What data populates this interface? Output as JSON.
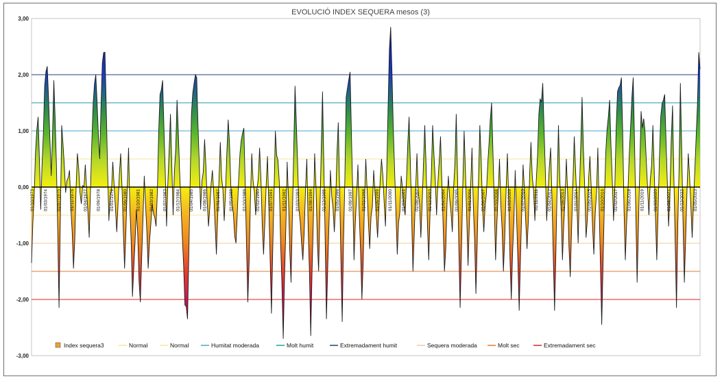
{
  "chart_data": {
    "type": "area",
    "title": "EVOLUCIÓ INDEX SEQUERA mesos (3)",
    "xlabel": "",
    "ylabel": "",
    "ylim": [
      -3,
      3
    ],
    "yticks": [
      "3,00",
      "2,00",
      "1,00",
      "0,00",
      "-1,00",
      "-2,00",
      "-3,00"
    ],
    "grid": false,
    "legend_position": "bottom",
    "legend": [
      {
        "label": "Index sequera3",
        "kind": "area",
        "color": "#f0a030"
      },
      {
        "label": "Normal",
        "kind": "line",
        "color": "#f5e6a0"
      },
      {
        "label": "Normal",
        "kind": "line",
        "color": "#f5e6a0"
      },
      {
        "label": "Humitat moderada",
        "kind": "line",
        "color": "#4aa6d6"
      },
      {
        "label": "Molt humit",
        "kind": "line",
        "color": "#1f9aa8"
      },
      {
        "label": "Extremadament humit",
        "kind": "line",
        "color": "#1f3f7a"
      },
      {
        "label": "Sequera moderada",
        "kind": "line",
        "color": "#f2c89a"
      },
      {
        "label": "Molt sec",
        "kind": "line",
        "color": "#e07a30"
      },
      {
        "label": "Extremadament sec",
        "kind": "line",
        "color": "#e02020"
      }
    ],
    "thresholds": [
      {
        "name": "Normal",
        "value": 0.5,
        "color": "#f5e6a0"
      },
      {
        "name": "Normal",
        "value": -0.5,
        "color": "#f5e6a0"
      },
      {
        "name": "Humitat moderada",
        "value": 1.0,
        "color": "#4aa6d6"
      },
      {
        "name": "Molt humit",
        "value": 1.5,
        "color": "#1f9aa8"
      },
      {
        "name": "Extremadament humit",
        "value": 2.0,
        "color": "#1f3f7a"
      },
      {
        "name": "Sequera moderada",
        "value": -1.0,
        "color": "#f2c89a"
      },
      {
        "name": "Molt sec",
        "value": -1.5,
        "color": "#e07a30"
      },
      {
        "name": "Extremadament sec",
        "value": -2.0,
        "color": "#e02020"
      }
    ],
    "x_tick_labels": [
      "01/10/1973",
      "01/03/1974",
      "01/07/1975",
      "01/11/1976",
      "01/04/1977",
      "01/09/1978",
      "01/01/1979",
      "01/06/1980",
      "01/10/1981",
      "01/03/1982",
      "01/07/1983",
      "01/12/1984",
      "01/04/1985",
      "01/08/1986",
      "01/01/1987",
      "01/05/1988",
      "01/10/1989",
      "01/02/1990",
      "01/07/1991",
      "01/11/1992",
      "01/03/1993",
      "01/08/1994",
      "01/12/1995",
      "01/05/1996",
      "01/09/1997",
      "01/02/1998",
      "01/06/1999",
      "01/11/2000",
      "01/03/2001",
      "01/08/2002",
      "01/12/2003",
      "01/04/2004",
      "01/09/2005",
      "01/01/2006",
      "01/06/2007",
      "01/10/2008",
      "01/03/2009",
      "01/07/2010",
      "01/11/2011",
      "01/04/2012",
      "01/08/2013",
      "01/01/2014",
      "01/05/2015",
      "01/10/2016",
      "01/02/2017",
      "01/06/2018",
      "01/11/2019",
      "01/03/2020",
      "01/08/2021",
      "01/12/2022",
      "01/05/2023"
    ],
    "anchors": [
      [
        0,
        -1.35
      ],
      [
        3,
        0.6
      ],
      [
        5,
        1.25
      ],
      [
        7,
        -0.4
      ],
      [
        10,
        1.8
      ],
      [
        12,
        2.15
      ],
      [
        15,
        0.2
      ],
      [
        17,
        1.9
      ],
      [
        19,
        0.4
      ],
      [
        21,
        -2.15
      ],
      [
        23,
        1.1
      ],
      [
        26,
        -0.1
      ],
      [
        29,
        0.3
      ],
      [
        32,
        -1.45
      ],
      [
        35,
        0.6
      ],
      [
        38,
        -0.3
      ],
      [
        41,
        0.4
      ],
      [
        44,
        -0.9
      ],
      [
        47,
        1.5
      ],
      [
        49,
        2.0
      ],
      [
        52,
        0.5
      ],
      [
        54,
        2.2
      ],
      [
        56,
        2.4
      ],
      [
        59,
        -0.6
      ],
      [
        62,
        0.45
      ],
      [
        65,
        -0.8
      ],
      [
        68,
        0.6
      ],
      [
        71,
        -1.45
      ],
      [
        74,
        0.7
      ],
      [
        77,
        -1.95
      ],
      [
        80,
        -0.4
      ],
      [
        83,
        -2.05
      ],
      [
        86,
        0.2
      ],
      [
        89,
        -1.45
      ],
      [
        92,
        -0.3
      ],
      [
        95,
        -0.7
      ],
      [
        98,
        1.65
      ],
      [
        100,
        1.9
      ],
      [
        103,
        -0.7
      ],
      [
        106,
        1.3
      ],
      [
        108,
        -0.5
      ],
      [
        111,
        1.55
      ],
      [
        114,
        -0.3
      ],
      [
        117,
        -2.1
      ],
      [
        119,
        -2.35
      ],
      [
        122,
        1.3
      ],
      [
        124,
        1.85
      ],
      [
        126,
        1.95
      ],
      [
        129,
        -0.4
      ],
      [
        132,
        0.85
      ],
      [
        135,
        -0.7
      ],
      [
        138,
        0.3
      ],
      [
        141,
        -1.2
      ],
      [
        144,
        0.8
      ],
      [
        147,
        -0.6
      ],
      [
        150,
        1.2
      ],
      [
        153,
        -0.3
      ],
      [
        156,
        -1.0
      ],
      [
        159,
        0.6
      ],
      [
        162,
        1.05
      ],
      [
        165,
        -2.05
      ],
      [
        168,
        0.6
      ],
      [
        171,
        -0.5
      ],
      [
        174,
        0.7
      ],
      [
        177,
        -1.2
      ],
      [
        180,
        0.55
      ],
      [
        183,
        -2.25
      ],
      [
        186,
        1.0
      ],
      [
        189,
        0.1
      ],
      [
        192,
        -2.7
      ],
      [
        195,
        0.45
      ],
      [
        198,
        -1.7
      ],
      [
        201,
        1.8
      ],
      [
        204,
        -0.4
      ],
      [
        207,
        -1.3
      ],
      [
        210,
        0.5
      ],
      [
        213,
        -2.65
      ],
      [
        216,
        0.6
      ],
      [
        219,
        -1.5
      ],
      [
        222,
        1.7
      ],
      [
        225,
        -2.35
      ],
      [
        228,
        0.3
      ],
      [
        231,
        -0.8
      ],
      [
        234,
        1.15
      ],
      [
        237,
        -2.4
      ],
      [
        240,
        1.6
      ],
      [
        243,
        2.05
      ],
      [
        246,
        -1.3
      ],
      [
        249,
        0.4
      ],
      [
        252,
        -2.0
      ],
      [
        255,
        0.5
      ],
      [
        258,
        -1.1
      ],
      [
        261,
        0.3
      ],
      [
        264,
        -0.9
      ],
      [
        267,
        0.5
      ],
      [
        270,
        -0.7
      ],
      [
        273,
        2.45
      ],
      [
        274,
        2.85
      ],
      [
        276,
        1.05
      ],
      [
        279,
        -1.2
      ],
      [
        282,
        0.2
      ],
      [
        285,
        -0.5
      ],
      [
        288,
        1.25
      ],
      [
        291,
        -1.5
      ],
      [
        294,
        0.6
      ],
      [
        297,
        -0.9
      ],
      [
        300,
        1.1
      ],
      [
        303,
        -1.3
      ],
      [
        306,
        1.1
      ],
      [
        309,
        -0.5
      ],
      [
        312,
        0.9
      ],
      [
        315,
        -1.5
      ],
      [
        318,
        0.2
      ],
      [
        321,
        -0.8
      ],
      [
        324,
        1.3
      ],
      [
        327,
        -2.15
      ],
      [
        330,
        1.0
      ],
      [
        333,
        -1.4
      ],
      [
        336,
        0.7
      ],
      [
        339,
        -1.9
      ],
      [
        342,
        1.1
      ],
      [
        345,
        -0.8
      ],
      [
        348,
        0.4
      ],
      [
        351,
        1.5
      ],
      [
        354,
        -1.3
      ],
      [
        357,
        0.5
      ],
      [
        360,
        -1.5
      ],
      [
        363,
        0.6
      ],
      [
        366,
        -2.0
      ],
      [
        369,
        0.3
      ],
      [
        372,
        -2.2
      ],
      [
        375,
        0.4
      ],
      [
        378,
        -1.1
      ],
      [
        381,
        0.8
      ],
      [
        384,
        -0.6
      ],
      [
        387,
        1.3
      ],
      [
        390,
        1.85
      ],
      [
        393,
        -0.6
      ],
      [
        396,
        0.7
      ],
      [
        399,
        -2.2
      ],
      [
        402,
        1.1
      ],
      [
        405,
        -1.3
      ],
      [
        408,
        0.5
      ],
      [
        411,
        -1.6
      ],
      [
        414,
        0.9
      ],
      [
        417,
        -1.0
      ],
      [
        420,
        1.6
      ],
      [
        423,
        -0.9
      ],
      [
        426,
        0.55
      ],
      [
        429,
        -1.2
      ],
      [
        432,
        0.7
      ],
      [
        435,
        -2.45
      ],
      [
        438,
        0.6
      ],
      [
        441,
        1.55
      ],
      [
        444,
        -0.6
      ],
      [
        447,
        1.7
      ],
      [
        450,
        1.95
      ],
      [
        453,
        -1.3
      ],
      [
        456,
        0.6
      ],
      [
        459,
        1.95
      ],
      [
        462,
        -1.7
      ],
      [
        465,
        1.35
      ],
      [
        468,
        1.0
      ],
      [
        471,
        -0.5
      ],
      [
        474,
        1.1
      ],
      [
        477,
        -1.3
      ],
      [
        480,
        1.25
      ],
      [
        483,
        1.65
      ],
      [
        486,
        -0.7
      ],
      [
        489,
        1.45
      ],
      [
        492,
        -2.15
      ],
      [
        495,
        1.85
      ],
      [
        498,
        -1.7
      ],
      [
        501,
        0.6
      ],
      [
        504,
        -0.9
      ],
      [
        507,
        0.9
      ],
      [
        509,
        2.4
      ],
      [
        510,
        2.1
      ]
    ]
  }
}
